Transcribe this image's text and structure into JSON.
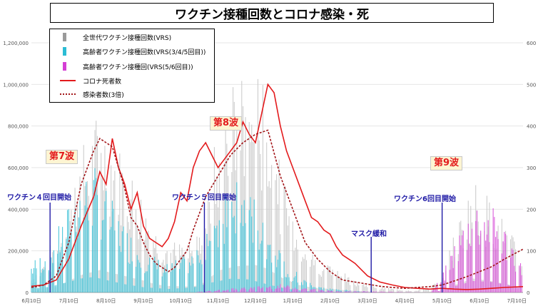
{
  "title": "ワクチン接種回数とコロナ感染・死",
  "legend": [
    {
      "label": "全世代ワクチン接種回数(VRS)",
      "color": "#9a9a9a",
      "kind": "bar"
    },
    {
      "label": "高齢者ワクチン接種回数(VRS(3/4/5回目))",
      "color": "#2bbcd4",
      "kind": "bar"
    },
    {
      "label": "高齢者ワクチン接種回(VRS(5/6回目))",
      "color": "#d43fd4",
      "kind": "bar"
    },
    {
      "label": "コロナ死者数",
      "color": "#e31a1c",
      "kind": "line"
    },
    {
      "label": "感染者数(3倍)",
      "color": "#a3161a",
      "kind": "dash"
    }
  ],
  "annotations": {
    "wave7": "第7波",
    "wave8": "第8波",
    "wave9": "第9波",
    "vac4": "ワクチン４回目開始",
    "vac5": "ワクチン５回目開始",
    "mask": "マスク緩和",
    "vac6": "ワクチン6回目開始"
  },
  "chart_data": {
    "type": "bar",
    "x_tick_labels": [
      "6月10日",
      "7月10日",
      "8月10日",
      "9月10日",
      "10月10日",
      "11月10日",
      "12月10日",
      "1月10日",
      "2月10日",
      "3月10日",
      "4月10日",
      "5月10日",
      "6月10日",
      "7月10日"
    ],
    "y_left_ticks": [
      "0",
      "200,000",
      "400,000",
      "600,000",
      "800,000",
      "1,000,000",
      "1,200,000"
    ],
    "y_right_ticks": [
      "0",
      "100",
      "200",
      "300",
      "400",
      "500",
      "600"
    ],
    "ylim_left": [
      0,
      1200000
    ],
    "ylim_right": [
      0,
      600
    ],
    "x_unit": "days since 6月10日",
    "vaccine_markers_day": {
      "vac4": 15,
      "vac5": 139,
      "mask": 273,
      "vac6": 330
    },
    "series": [
      {
        "name": "全世代ワクチン接種回数(VRS)",
        "axis": "left",
        "envelope_days": [
          0,
          20,
          40,
          55,
          70,
          90,
          100,
          110,
          130,
          140,
          150,
          165,
          180,
          190,
          200,
          215,
          225,
          240,
          255,
          270,
          290,
          310,
          330,
          340,
          355,
          370,
          385,
          395
        ],
        "envelope_values": [
          80000,
          220000,
          700000,
          900000,
          720000,
          480000,
          320000,
          260000,
          230000,
          420000,
          880000,
          1050000,
          1100000,
          950000,
          620000,
          300000,
          200000,
          140000,
          80000,
          40000,
          20000,
          10000,
          60000,
          300000,
          560000,
          450000,
          300000,
          150000
        ]
      },
      {
        "name": "高齢者ワクチン接種回数(VRS(3/4/5回目))",
        "axis": "left",
        "envelope_days": [
          0,
          15,
          25,
          40,
          50,
          60,
          75,
          90,
          110,
          130,
          145,
          160,
          175,
          190,
          205,
          220,
          240,
          260,
          280,
          330,
          395
        ],
        "envelope_values": [
          150000,
          230000,
          360000,
          560000,
          620000,
          500000,
          330000,
          210000,
          140000,
          200000,
          400000,
          550000,
          520000,
          320000,
          150000,
          60000,
          20000,
          10000,
          0,
          0,
          0
        ]
      },
      {
        "name": "高齢者ワクチン接種回(VRS(5/6回目))",
        "axis": "left",
        "envelope_days": [
          0,
          130,
          160,
          200,
          240,
          320,
          330,
          340,
          355,
          370,
          385,
          395
        ],
        "envelope_values": [
          0,
          0,
          20000,
          40000,
          10000,
          0,
          80000,
          250000,
          460000,
          420000,
          280000,
          120000
        ]
      },
      {
        "name": "コロナ死者数",
        "axis": "right",
        "days": [
          0,
          10,
          20,
          30,
          40,
          50,
          55,
          60,
          65,
          70,
          75,
          80,
          85,
          90,
          95,
          100,
          105,
          110,
          115,
          120,
          125,
          130,
          135,
          140,
          145,
          150,
          155,
          160,
          165,
          170,
          175,
          180,
          185,
          190,
          195,
          200,
          205,
          210,
          215,
          220,
          225,
          230,
          235,
          240,
          245,
          250,
          255,
          260,
          270,
          280,
          290,
          300,
          310,
          320,
          330,
          340,
          350,
          360,
          370,
          380,
          395
        ],
        "values": [
          15,
          18,
          30,
          80,
          160,
          230,
          290,
          260,
          370,
          300,
          260,
          200,
          240,
          160,
          130,
          120,
          110,
          130,
          170,
          240,
          220,
          300,
          340,
          360,
          330,
          300,
          320,
          340,
          360,
          410,
          380,
          360,
          430,
          500,
          480,
          400,
          340,
          300,
          260,
          220,
          180,
          170,
          150,
          140,
          110,
          90,
          80,
          70,
          40,
          25,
          18,
          12,
          10,
          8,
          10,
          8,
          7,
          8,
          10,
          12,
          14
        ]
      },
      {
        "name": "感染者数(3倍)",
        "axis": "right",
        "days": [
          0,
          10,
          20,
          30,
          40,
          50,
          55,
          60,
          65,
          70,
          75,
          80,
          85,
          90,
          95,
          100,
          105,
          110,
          115,
          120,
          125,
          130,
          140,
          150,
          160,
          170,
          180,
          190,
          200,
          210,
          220,
          230,
          240,
          250,
          260,
          270,
          280,
          290,
          300,
          310,
          320,
          330,
          340,
          350,
          360,
          370,
          380,
          395
        ],
        "values": [
          12,
          18,
          40,
          120,
          260,
          340,
          370,
          360,
          350,
          300,
          250,
          180,
          160,
          120,
          90,
          70,
          60,
          50,
          60,
          80,
          100,
          150,
          230,
          280,
          330,
          360,
          380,
          390,
          280,
          200,
          120,
          80,
          50,
          30,
          25,
          20,
          15,
          12,
          10,
          12,
          14,
          18,
          28,
          38,
          50,
          62,
          80,
          104
        ]
      }
    ]
  }
}
